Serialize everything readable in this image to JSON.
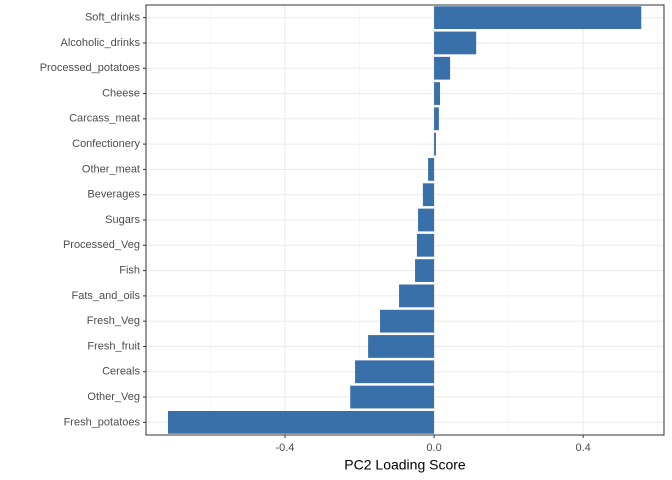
{
  "chart_data": {
    "type": "bar",
    "orientation": "horizontal",
    "xlabel": "PC2 Loading Score",
    "categories": [
      "Soft_drinks",
      "Alcoholic_drinks",
      "Processed_potatoes",
      "Cheese",
      "Carcass_meat",
      "Confectionery",
      "Other_meat",
      "Beverages",
      "Sugars",
      "Processed_Veg",
      "Fish",
      "Fats_and_oils",
      "Fresh_Veg",
      "Fresh_fruit",
      "Cereals",
      "Other_Veg",
      "Fresh_potatoes"
    ],
    "values": [
      0.556,
      0.113,
      0.043,
      0.016,
      0.013,
      0.005,
      -0.016,
      -0.03,
      -0.043,
      -0.046,
      -0.051,
      -0.094,
      -0.145,
      -0.177,
      -0.212,
      -0.225,
      -0.714
    ],
    "color": "#3a70aa",
    "xlim": [
      -0.773,
      0.617
    ],
    "xticks": [
      -0.4,
      {
        "value": 0,
        "label": "0.0"
      },
      0.4
    ],
    "xminorticks": [
      -0.6,
      -0.2,
      0.2,
      0.6
    ],
    "grid": true
  }
}
